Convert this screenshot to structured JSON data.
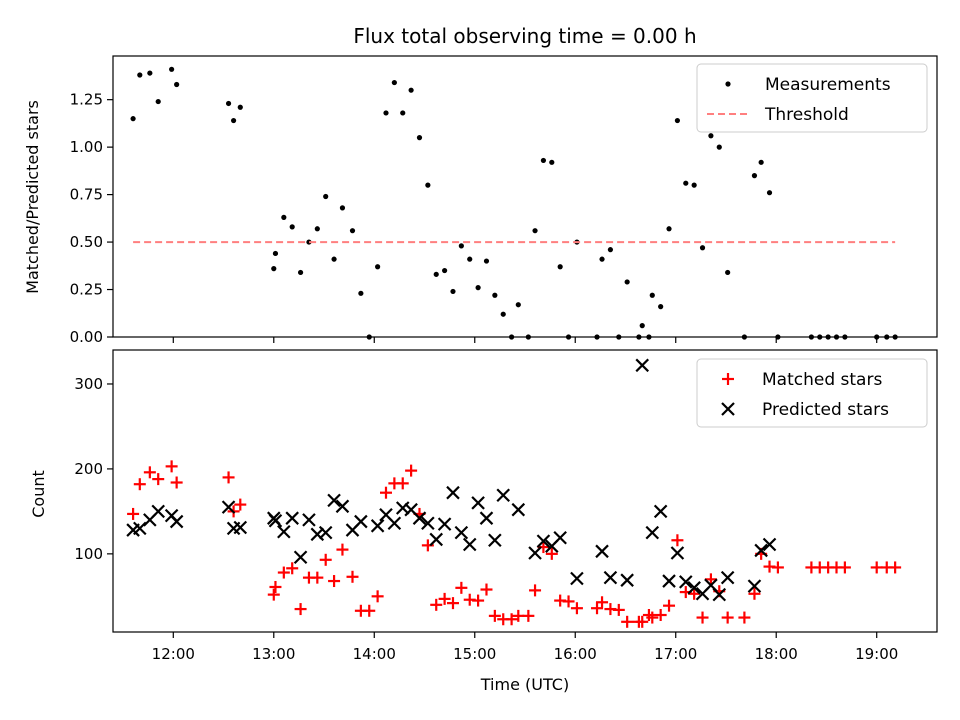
{
  "chart_data": [
    {
      "type": "scatter",
      "title": "Flux total observing time = 0.00 h",
      "xlabel": "",
      "ylabel": "Matched/Predicted stars",
      "xlim": [
        "11:24",
        "19:36"
      ],
      "ylim": [
        0,
        1.48
      ],
      "y_ticks": [
        0.0,
        0.25,
        0.5,
        0.75,
        1.0,
        1.25
      ],
      "y_tick_labels": [
        "0.00",
        "0.25",
        "0.50",
        "0.75",
        "1.00",
        "1.25"
      ],
      "legend_position": "upper right",
      "series": [
        {
          "name": "Measurements",
          "marker": "dot",
          "color": "#000000",
          "points": [
            [
              "11:36",
              1.15
            ],
            [
              "11:40",
              1.38
            ],
            [
              "11:46",
              1.39
            ],
            [
              "11:51",
              1.24
            ],
            [
              "11:59",
              1.41
            ],
            [
              "12:02",
              1.33
            ],
            [
              "12:33",
              1.23
            ],
            [
              "12:36",
              1.14
            ],
            [
              "12:40",
              1.21
            ],
            [
              "13:00",
              0.36
            ],
            [
              "13:01",
              0.44
            ],
            [
              "13:06",
              0.63
            ],
            [
              "13:11",
              0.58
            ],
            [
              "13:16",
              0.34
            ],
            [
              "13:21",
              0.5
            ],
            [
              "13:26",
              0.57
            ],
            [
              "13:31",
              0.74
            ],
            [
              "13:36",
              0.41
            ],
            [
              "13:41",
              0.68
            ],
            [
              "13:47",
              0.56
            ],
            [
              "13:52",
              0.23
            ],
            [
              "13:57",
              0.0
            ],
            [
              "14:02",
              0.37
            ],
            [
              "14:07",
              1.18
            ],
            [
              "14:12",
              1.34
            ],
            [
              "14:17",
              1.18
            ],
            [
              "14:22",
              1.3
            ],
            [
              "14:27",
              1.05
            ],
            [
              "14:32",
              0.8
            ],
            [
              "14:37",
              0.33
            ],
            [
              "14:42",
              0.35
            ],
            [
              "14:47",
              0.24
            ],
            [
              "14:52",
              0.48
            ],
            [
              "14:57",
              0.41
            ],
            [
              "15:02",
              0.26
            ],
            [
              "15:07",
              0.4
            ],
            [
              "15:12",
              0.22
            ],
            [
              "15:17",
              0.12
            ],
            [
              "15:22",
              0.0
            ],
            [
              "15:26",
              0.17
            ],
            [
              "15:32",
              0.0
            ],
            [
              "15:36",
              0.56
            ],
            [
              "15:41",
              0.93
            ],
            [
              "15:46",
              0.92
            ],
            [
              "15:51",
              0.37
            ],
            [
              "15:56",
              0.0
            ],
            [
              "16:01",
              0.5
            ],
            [
              "16:13",
              0.0
            ],
            [
              "16:16",
              0.41
            ],
            [
              "16:21",
              0.46
            ],
            [
              "16:26",
              0.0
            ],
            [
              "16:31",
              0.29
            ],
            [
              "16:38",
              0.0
            ],
            [
              "16:40",
              0.06
            ],
            [
              "16:44",
              0.0
            ],
            [
              "16:46",
              0.22
            ],
            [
              "16:51",
              0.16
            ],
            [
              "16:56",
              0.57
            ],
            [
              "17:01",
              1.14
            ],
            [
              "17:06",
              0.81
            ],
            [
              "17:11",
              0.8
            ],
            [
              "17:16",
              0.47
            ],
            [
              "17:21",
              1.06
            ],
            [
              "17:26",
              1.0
            ],
            [
              "17:31",
              0.34
            ],
            [
              "17:41",
              0.0
            ],
            [
              "17:47",
              0.85
            ],
            [
              "17:51",
              0.92
            ],
            [
              "17:56",
              0.76
            ],
            [
              "18:01",
              0.0
            ],
            [
              "18:21",
              0.0
            ],
            [
              "18:26",
              0.0
            ],
            [
              "18:31",
              0.0
            ],
            [
              "18:36",
              0.0
            ],
            [
              "18:41",
              0.0
            ],
            [
              "19:00",
              0.0
            ],
            [
              "19:06",
              0.0
            ],
            [
              "19:11",
              0.0
            ]
          ]
        },
        {
          "name": "Threshold",
          "marker": "dashed-line",
          "color": "#ff7f7f",
          "points": [
            [
              "11:36",
              0.5
            ],
            [
              "19:11",
              0.5
            ]
          ]
        }
      ]
    },
    {
      "type": "scatter",
      "title": "",
      "xlabel": "Time (UTC)",
      "ylabel": "Count",
      "xlim": [
        "11:24",
        "19:36"
      ],
      "ylim": [
        8,
        340
      ],
      "y_ticks": [
        100,
        200,
        300
      ],
      "y_tick_labels": [
        "100",
        "200",
        "300"
      ],
      "x_ticks": [
        "12:00",
        "13:00",
        "14:00",
        "15:00",
        "16:00",
        "17:00",
        "18:00",
        "19:00"
      ],
      "x_tick_labels": [
        "12:00",
        "13:00",
        "14:00",
        "15:00",
        "16:00",
        "17:00",
        "18:00",
        "19:00"
      ],
      "legend_position": "upper right",
      "series": [
        {
          "name": "Matched stars",
          "marker": "plus",
          "color": "#ff0000",
          "points": [
            [
              "11:36",
              147
            ],
            [
              "11:40",
              182
            ],
            [
              "11:46",
              196
            ],
            [
              "11:51",
              188
            ],
            [
              "11:59",
              203
            ],
            [
              "12:02",
              184
            ],
            [
              "12:33",
              190
            ],
            [
              "12:36",
              150
            ],
            [
              "12:40",
              158
            ],
            [
              "13:00",
              52
            ],
            [
              "13:01",
              61
            ],
            [
              "13:06",
              78
            ],
            [
              "13:11",
              83
            ],
            [
              "13:16",
              35
            ],
            [
              "13:21",
              72
            ],
            [
              "13:26",
              72
            ],
            [
              "13:31",
              93
            ],
            [
              "13:36",
              68
            ],
            [
              "13:41",
              105
            ],
            [
              "13:47",
              73
            ],
            [
              "13:52",
              33
            ],
            [
              "13:57",
              33
            ],
            [
              "14:02",
              50
            ],
            [
              "14:07",
              172
            ],
            [
              "14:12",
              183
            ],
            [
              "14:17",
              183
            ],
            [
              "14:22",
              198
            ],
            [
              "14:27",
              147
            ],
            [
              "14:32",
              110
            ],
            [
              "14:37",
              40
            ],
            [
              "14:42",
              47
            ],
            [
              "14:47",
              42
            ],
            [
              "14:52",
              60
            ],
            [
              "14:57",
              46
            ],
            [
              "15:02",
              45
            ],
            [
              "15:07",
              58
            ],
            [
              "15:12",
              27
            ],
            [
              "15:17",
              23
            ],
            [
              "15:22",
              23
            ],
            [
              "15:26",
              27
            ],
            [
              "15:32",
              27
            ],
            [
              "15:36",
              57
            ],
            [
              "15:41",
              108
            ],
            [
              "15:46",
              100
            ],
            [
              "15:51",
              45
            ],
            [
              "15:56",
              44
            ],
            [
              "16:01",
              36
            ],
            [
              "16:13",
              36
            ],
            [
              "16:16",
              43
            ],
            [
              "16:21",
              35
            ],
            [
              "16:26",
              34
            ],
            [
              "16:31",
              20
            ],
            [
              "16:38",
              20
            ],
            [
              "16:40",
              20
            ],
            [
              "16:44",
              28
            ],
            [
              "16:46",
              25
            ],
            [
              "16:51",
              28
            ],
            [
              "16:56",
              39
            ],
            [
              "17:01",
              116
            ],
            [
              "17:06",
              55
            ],
            [
              "17:11",
              53
            ],
            [
              "17:16",
              25
            ],
            [
              "17:21",
              70
            ],
            [
              "17:26",
              56
            ],
            [
              "17:31",
              25
            ],
            [
              "17:41",
              25
            ],
            [
              "17:47",
              53
            ],
            [
              "17:51",
              100
            ],
            [
              "17:56",
              85
            ],
            [
              "18:01",
              84
            ],
            [
              "18:21",
              84
            ],
            [
              "18:26",
              84
            ],
            [
              "18:31",
              84
            ],
            [
              "18:36",
              84
            ],
            [
              "18:41",
              84
            ],
            [
              "19:00",
              84
            ],
            [
              "19:06",
              84
            ],
            [
              "19:11",
              84
            ]
          ]
        },
        {
          "name": "Predicted stars",
          "marker": "x",
          "color": "#000000",
          "points": [
            [
              "11:36",
              128
            ],
            [
              "11:40",
              130
            ],
            [
              "11:46",
              140
            ],
            [
              "11:51",
              150
            ],
            [
              "11:59",
              145
            ],
            [
              "12:02",
              138
            ],
            [
              "12:33",
              155
            ],
            [
              "12:36",
              130
            ],
            [
              "12:40",
              131
            ],
            [
              "13:00",
              142
            ],
            [
              "13:01",
              139
            ],
            [
              "13:06",
              126
            ],
            [
              "13:11",
              142
            ],
            [
              "13:16",
              96
            ],
            [
              "13:21",
              140
            ],
            [
              "13:26",
              123
            ],
            [
              "13:31",
              125
            ],
            [
              "13:36",
              163
            ],
            [
              "13:41",
              156
            ],
            [
              "13:47",
              128
            ],
            [
              "13:52",
              138
            ],
            [
              "14:02",
              133
            ],
            [
              "14:07",
              146
            ],
            [
              "14:12",
              136
            ],
            [
              "14:17",
              154
            ],
            [
              "14:22",
              152
            ],
            [
              "14:27",
              142
            ],
            [
              "14:32",
              136
            ],
            [
              "14:37",
              117
            ],
            [
              "14:42",
              135
            ],
            [
              "14:47",
              172
            ],
            [
              "14:52",
              125
            ],
            [
              "14:57",
              111
            ],
            [
              "15:02",
              160
            ],
            [
              "15:07",
              142
            ],
            [
              "15:12",
              116
            ],
            [
              "15:17",
              169
            ],
            [
              "15:26",
              152
            ],
            [
              "15:36",
              101
            ],
            [
              "15:41",
              115
            ],
            [
              "15:46",
              109
            ],
            [
              "15:51",
              119
            ],
            [
              "16:01",
              71
            ],
            [
              "16:16",
              103
            ],
            [
              "16:21",
              72
            ],
            [
              "16:31",
              69
            ],
            [
              "16:40",
              322
            ],
            [
              "16:46",
              125
            ],
            [
              "16:51",
              150
            ],
            [
              "16:56",
              68
            ],
            [
              "17:01",
              101
            ],
            [
              "17:06",
              67
            ],
            [
              "17:11",
              60
            ],
            [
              "17:16",
              53
            ],
            [
              "17:21",
              63
            ],
            [
              "17:26",
              52
            ],
            [
              "17:31",
              72
            ],
            [
              "17:47",
              62
            ],
            [
              "17:51",
              104
            ],
            [
              "17:56",
              111
            ]
          ]
        }
      ]
    }
  ]
}
